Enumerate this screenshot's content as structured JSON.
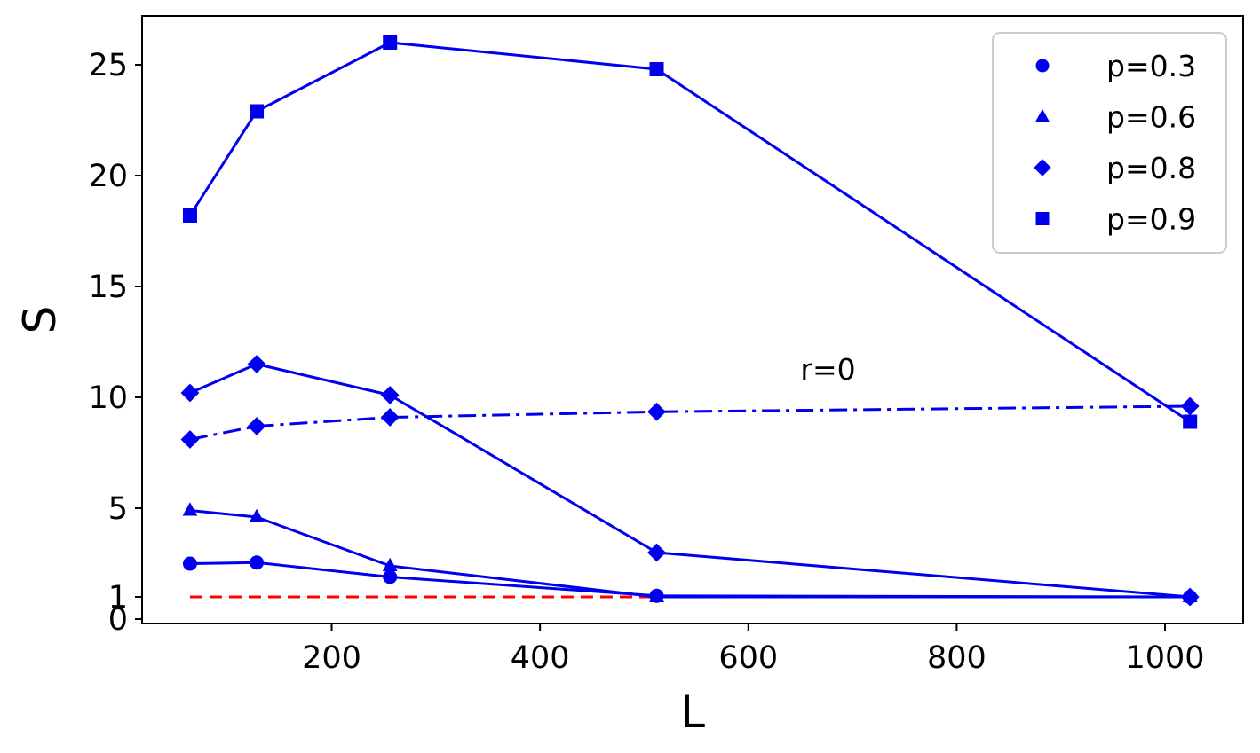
{
  "chart_data": {
    "type": "line",
    "title": "",
    "xlabel": "L",
    "ylabel": "S",
    "xlim": [
      18,
      1075
    ],
    "ylim": [
      -0.2,
      27.2
    ],
    "xticks": [
      200,
      400,
      600,
      800,
      1000
    ],
    "xtick_labels": [
      "200",
      "400",
      "600",
      "800",
      "1000"
    ],
    "yticks": [
      0,
      1,
      5,
      10,
      15,
      20,
      25
    ],
    "ytick_labels": [
      "0",
      "1",
      "5",
      "10",
      "15",
      "20",
      "25"
    ],
    "grid": false,
    "legend_position": "top-right",
    "line_color": "#0000ee",
    "reference_color": "#ff0000",
    "series": [
      {
        "name": "p=0.3",
        "marker": "circle",
        "style": "solid",
        "x": [
          64,
          128,
          256,
          512,
          1024
        ],
        "y": [
          2.5,
          2.55,
          1.9,
          1.05,
          1.0
        ]
      },
      {
        "name": "p=0.6",
        "marker": "triangle",
        "style": "solid",
        "x": [
          64,
          128,
          256,
          512,
          1024
        ],
        "y": [
          4.9,
          4.6,
          2.4,
          1.0,
          1.0
        ]
      },
      {
        "name": "p=0.8",
        "marker": "diamond",
        "style": "solid",
        "x": [
          64,
          128,
          256,
          512,
          1024
        ],
        "y": [
          10.2,
          11.5,
          10.1,
          3.0,
          1.0
        ]
      },
      {
        "name": "p=0.9",
        "marker": "square",
        "style": "solid",
        "x": [
          64,
          128,
          256,
          512,
          1024
        ],
        "y": [
          18.2,
          22.9,
          26.0,
          24.8,
          8.9
        ]
      },
      {
        "name": "",
        "marker": "diamond",
        "style": "dashdot",
        "x": [
          64,
          128,
          256,
          512,
          1024
        ],
        "y": [
          8.1,
          8.7,
          9.1,
          9.35,
          9.6
        ]
      }
    ],
    "reference_line": {
      "style": "dashed",
      "x": [
        64,
        1024
      ],
      "y": [
        1,
        1
      ]
    },
    "annotations": [
      {
        "text": "r=0",
        "x": 650,
        "y": 10.8
      }
    ]
  }
}
